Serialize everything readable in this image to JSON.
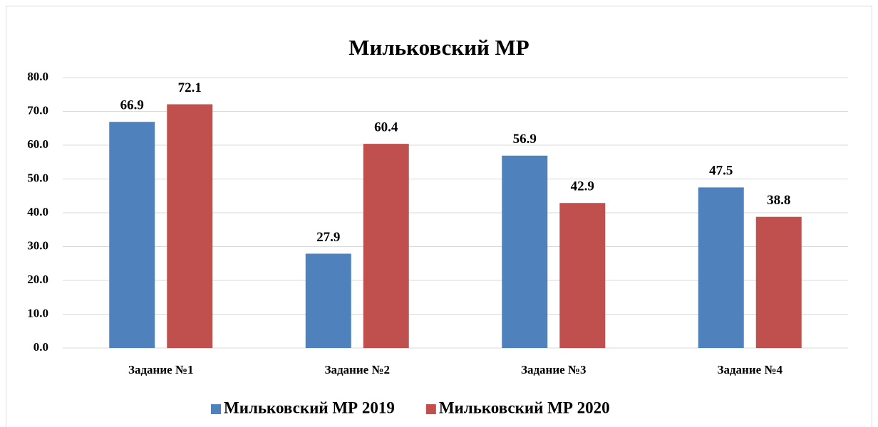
{
  "chart_data": {
    "type": "bar",
    "title": "Мильковский МР",
    "categories": [
      "Задание №1",
      "Задание №2",
      "Задание №3",
      "Задание №4"
    ],
    "series": [
      {
        "name": "Мильковский МР 2019",
        "color": "#4f81bd",
        "values": [
          66.9,
          27.9,
          56.9,
          47.5
        ]
      },
      {
        "name": "Мильковский МР 2020",
        "color": "#c0504d",
        "values": [
          72.1,
          60.4,
          42.9,
          38.8
        ]
      }
    ],
    "ylim": [
      0,
      80
    ],
    "yticks": [
      {
        "value": 0,
        "label": "0.0"
      },
      {
        "value": 10,
        "label": "10.0"
      },
      {
        "value": 20,
        "label": "20.0"
      },
      {
        "value": 30,
        "label": "30.0"
      },
      {
        "value": 40,
        "label": "40.0"
      },
      {
        "value": 50,
        "label": "50.0"
      },
      {
        "value": 60,
        "label": "60.0"
      },
      {
        "value": 70,
        "label": "70.0"
      },
      {
        "value": 80,
        "label": "80.0"
      }
    ],
    "grid": true,
    "legend": "bottom"
  }
}
